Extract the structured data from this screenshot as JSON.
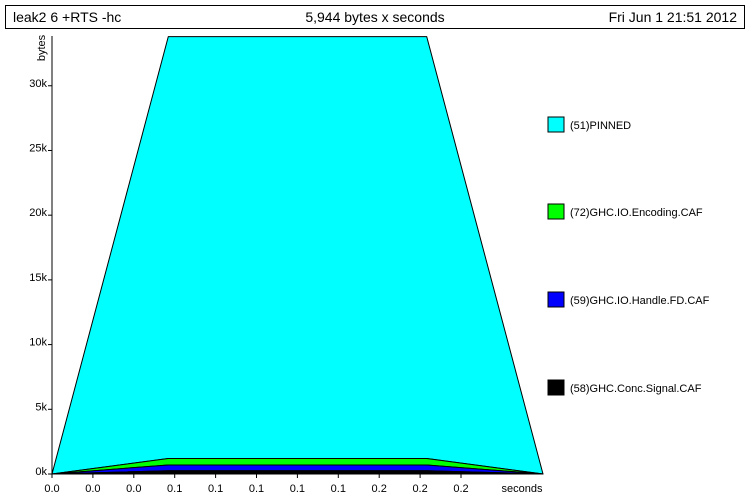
{
  "header": {
    "left": "leak2 6 +RTS -hc",
    "center": "5,944 bytes x seconds",
    "right": "Fri Jun  1 21:51 2012"
  },
  "chart_data": {
    "type": "area",
    "title": "5,944 bytes x seconds",
    "xlabel": "seconds",
    "ylabel": "bytes",
    "stacked": true,
    "ylim": [
      0,
      34000
    ],
    "ytick_values": [
      0,
      5000,
      10000,
      15000,
      20000,
      25000,
      30000
    ],
    "ytick_labels": [
      "0k",
      "5k",
      "10k",
      "15k",
      "20k",
      "25k",
      "30k"
    ],
    "xtick_labels": [
      "0.0",
      "0.0",
      "0.0",
      "0.1",
      "0.1",
      "0.1",
      "0.1",
      "0.1",
      "0.2",
      "0.2",
      "0.2"
    ],
    "x": [
      0.0,
      0.045,
      0.145,
      0.19
    ],
    "series": [
      {
        "name": "(58)GHC.Conc.Signal.CAF",
        "color": "#000000",
        "values": [
          0,
          250,
          250,
          0
        ]
      },
      {
        "name": "(59)GHC.IO.Handle.FD.CAF",
        "color": "#0000ff",
        "values": [
          0,
          450,
          450,
          0
        ]
      },
      {
        "name": "(72)GHC.IO.Encoding.CAF",
        "color": "#00ff00",
        "values": [
          0,
          500,
          500,
          0
        ]
      },
      {
        "name": "(51)PINNED",
        "color": "#00ffff",
        "values": [
          0,
          32600,
          32600,
          0
        ]
      }
    ],
    "legend_order": [
      "(51)PINNED",
      "(72)GHC.IO.Encoding.CAF",
      "(59)GHC.IO.Handle.FD.CAF",
      "(58)GHC.Conc.Signal.CAF"
    ],
    "legend_position": "right",
    "grid": false
  }
}
